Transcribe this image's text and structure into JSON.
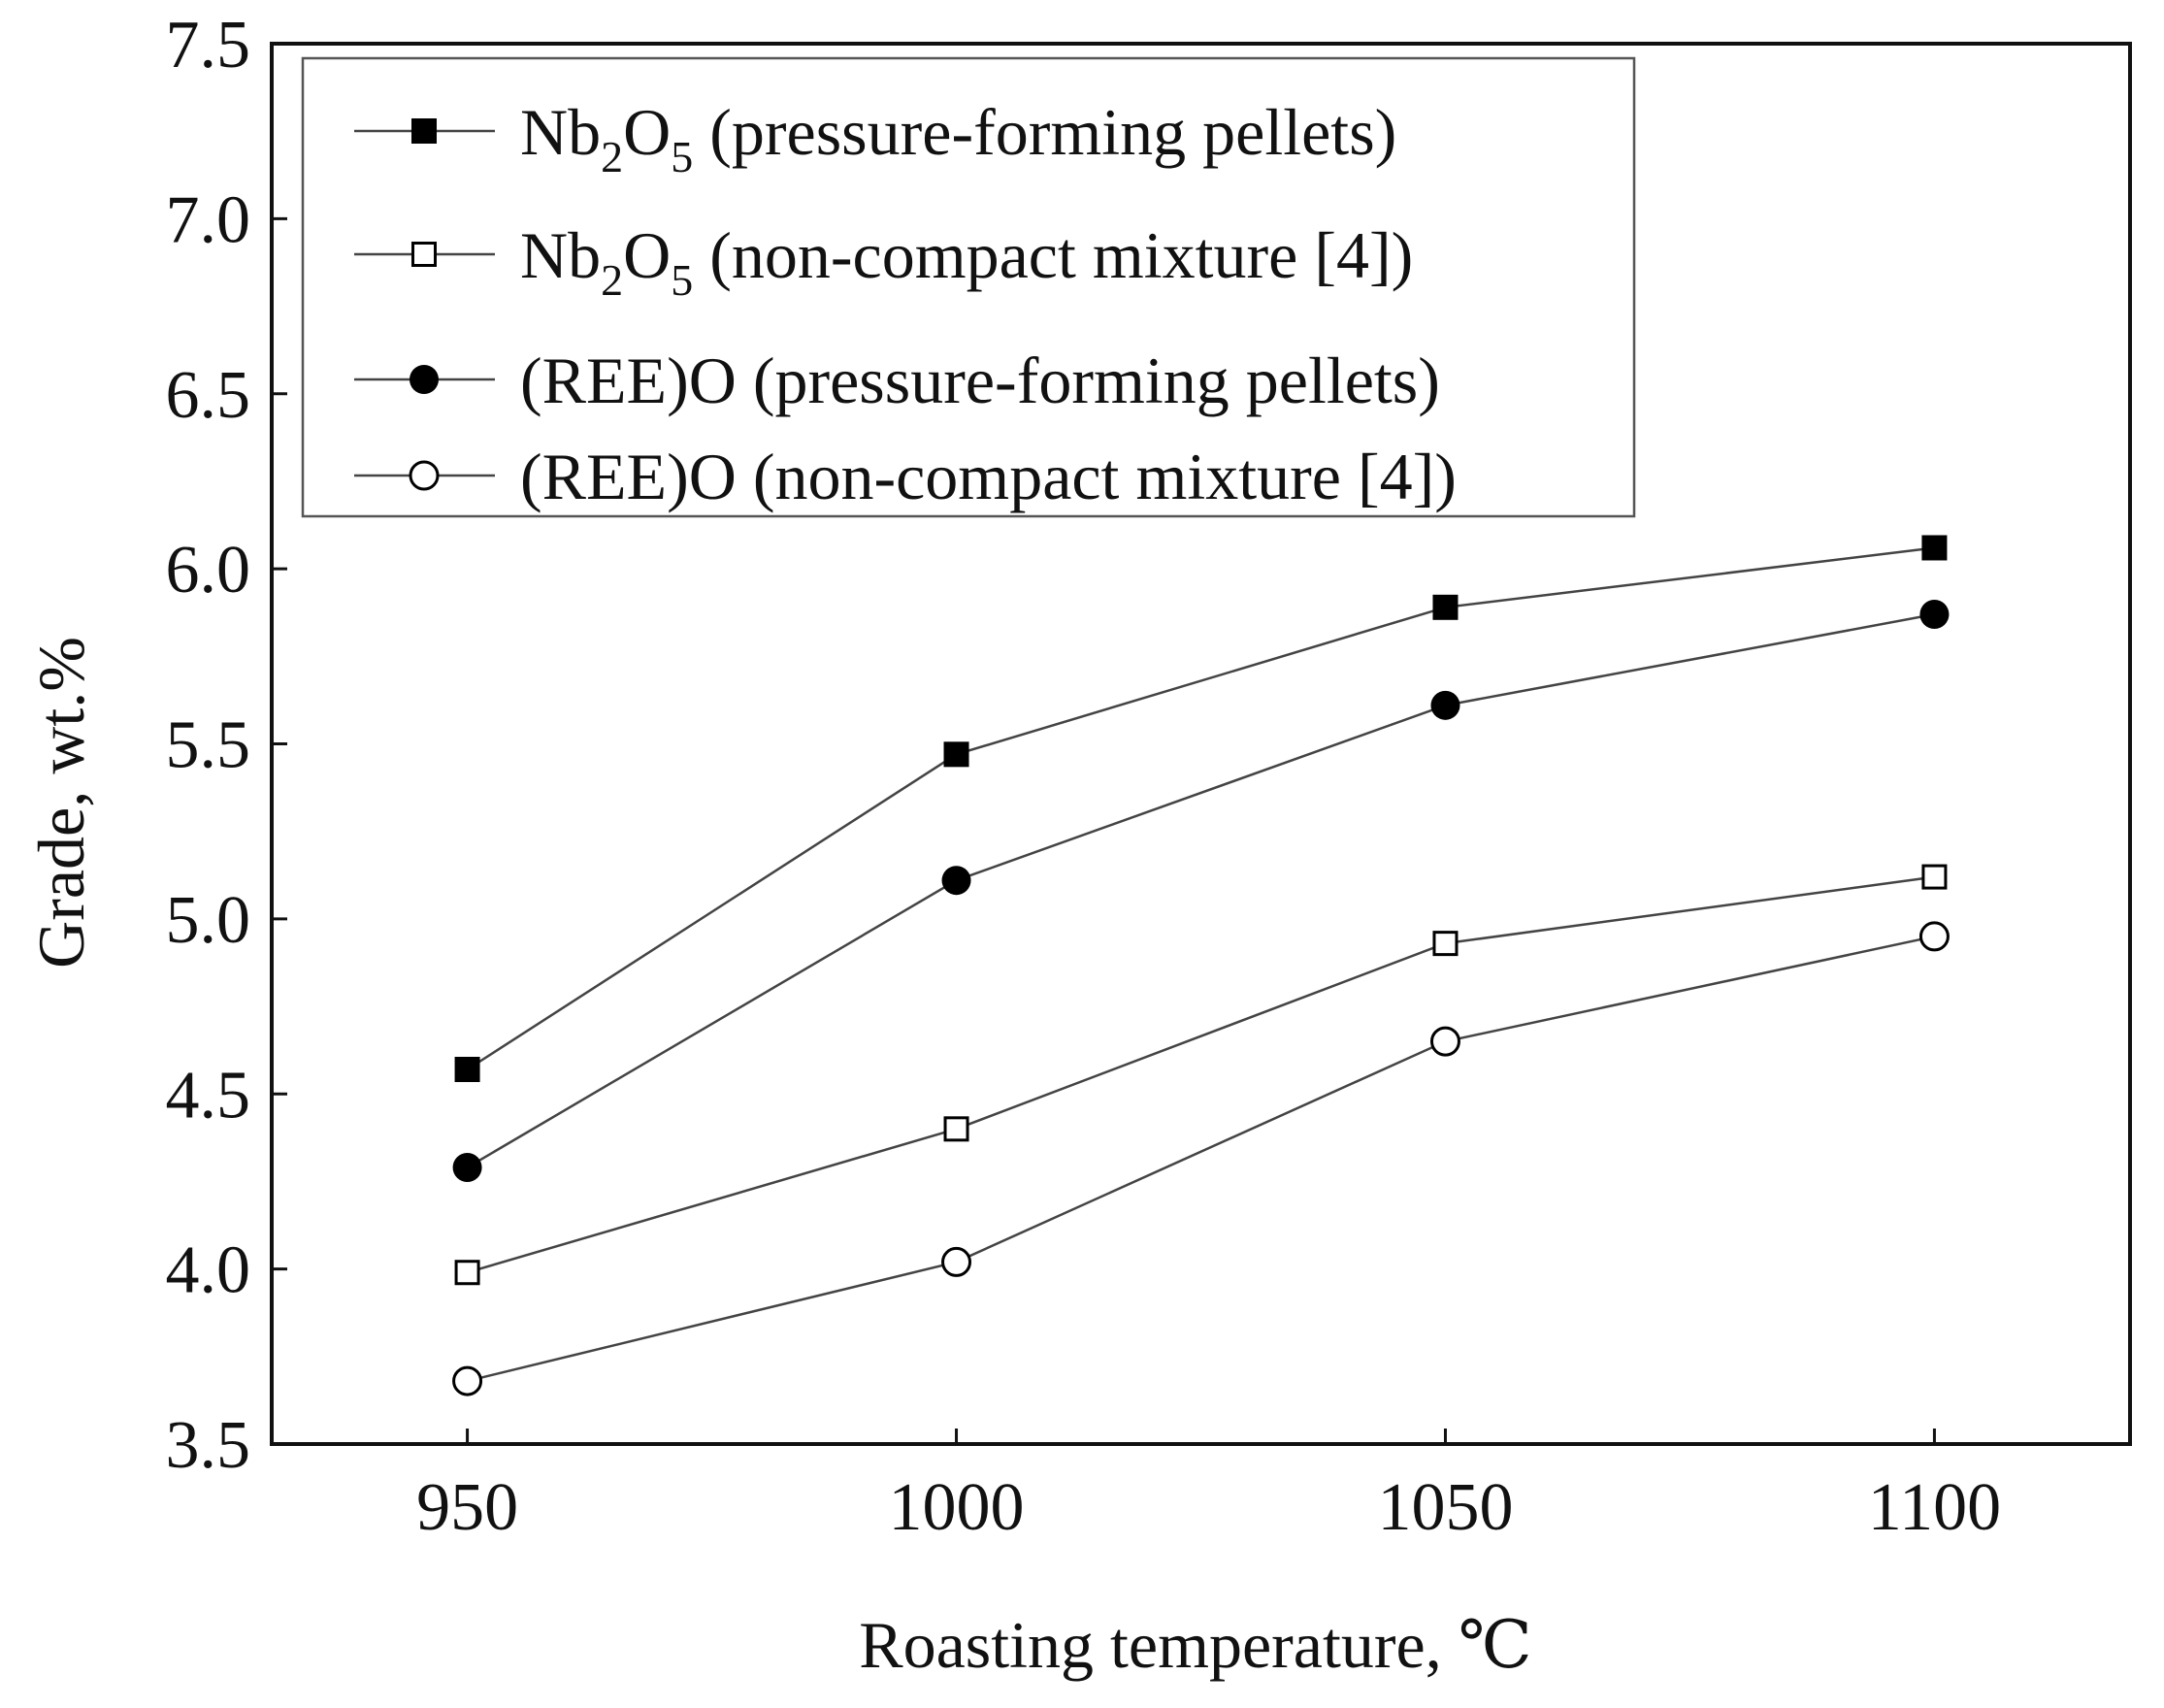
{
  "chart_data": {
    "type": "line",
    "title": "",
    "xlabel": "Roasting temperature, ℃",
    "ylabel": "Grade, wt.%",
    "x": [
      950,
      1000,
      1050,
      1100
    ],
    "xticks": [
      "950",
      "1000",
      "1050",
      "1100"
    ],
    "yticks": [
      "3.5",
      "4.0",
      "4.5",
      "5.0",
      "5.5",
      "6.0",
      "6.5",
      "7.0",
      "7.5"
    ],
    "xlim": [
      930,
      1120
    ],
    "ylim": [
      3.5,
      7.5
    ],
    "grid": false,
    "legend_position": "top-left",
    "series": [
      {
        "name": "Nb2O5 (pressure-forming pellets)",
        "legend": {
          "base": "Nb",
          "sub1": "2",
          "mid": "O",
          "sub2": "5",
          "rest": " (pressure-forming pellets)"
        },
        "marker": "square-filled",
        "values": [
          4.57,
          5.47,
          5.89,
          6.06
        ]
      },
      {
        "name": "Nb2O5 (non-compact mixture [4])",
        "legend": {
          "base": "Nb",
          "sub1": "2",
          "mid": "O",
          "sub2": "5",
          "rest": " (non-compact mixture [4])"
        },
        "marker": "square-open",
        "values": [
          3.99,
          4.4,
          4.93,
          5.12
        ]
      },
      {
        "name": "(REE)O (pressure-forming pellets)",
        "legend": {
          "base": "(REE)O (pressure-forming pellets)"
        },
        "marker": "circle-filled",
        "values": [
          4.29,
          5.11,
          5.61,
          5.87
        ]
      },
      {
        "name": "(REE)O (non-compact mixture [4])",
        "legend": {
          "base": "(REE)O (non-compact mixture [4])"
        },
        "marker": "circle-open",
        "values": [
          3.68,
          4.02,
          4.65,
          4.95
        ]
      }
    ],
    "colors": {
      "line": "#444444",
      "marker": "#000000",
      "axis": "#111111"
    }
  }
}
